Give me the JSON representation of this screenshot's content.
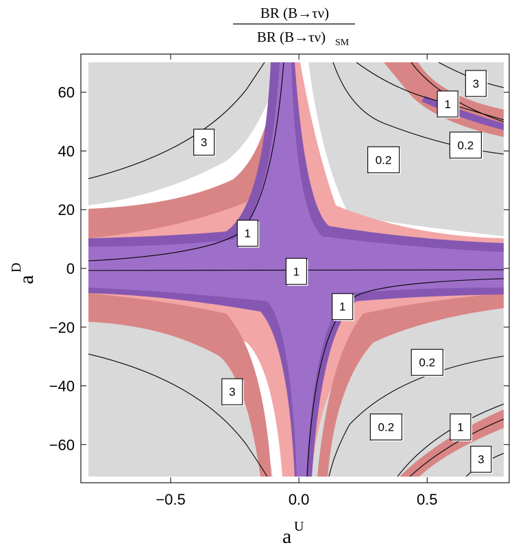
{
  "chart_data": {
    "type": "contour",
    "title": {
      "numerator": "BR (B→τν)",
      "denominator": "BR (B→τν)",
      "denominator_subscript": "SM"
    },
    "xlabel": "a",
    "xlabel_superscript": "U",
    "ylabel": "a",
    "ylabel_superscript": "D",
    "xlim": [
      -0.85,
      0.82
    ],
    "ylim": [
      -73,
      73
    ],
    "xticks": [
      {
        "value": -0.5,
        "label": "−0.5"
      },
      {
        "value": 0.0,
        "label": "0.0"
      },
      {
        "value": 0.5,
        "label": "0.5"
      }
    ],
    "yticks": [
      {
        "value": 60,
        "label": "60"
      },
      {
        "value": 40,
        "label": "40"
      },
      {
        "value": 20,
        "label": "20"
      },
      {
        "value": 0,
        "label": "0"
      },
      {
        "value": -20,
        "label": "−20"
      },
      {
        "value": -40,
        "label": "−40"
      },
      {
        "value": -60,
        "label": "−60"
      }
    ],
    "regions": [
      {
        "name": "excluded",
        "color": "#d9d9d9"
      },
      {
        "name": "allowed-2sigma",
        "color": "#d98585"
      },
      {
        "name": "allowed-1sigma",
        "color": "#f2a6a6"
      },
      {
        "name": "dark-purple-band",
        "color": "#8557b3"
      },
      {
        "name": "light-purple-band",
        "color": "#9e6fc8"
      }
    ],
    "contour_levels": [
      0.2,
      1,
      3
    ],
    "contour_labels": [
      {
        "text": "3",
        "x": -0.37,
        "y": 43
      },
      {
        "text": "3",
        "x": 0.69,
        "y": 63
      },
      {
        "text": "1",
        "x": 0.58,
        "y": 56
      },
      {
        "text": "0.2",
        "x": 0.33,
        "y": 37
      },
      {
        "text": "0.2",
        "x": 0.65,
        "y": 42
      },
      {
        "text": "1",
        "x": -0.2,
        "y": 12
      },
      {
        "text": "1",
        "x": -0.01,
        "y": -1
      },
      {
        "text": "1",
        "x": 0.17,
        "y": -13
      },
      {
        "text": "0.2",
        "x": 0.5,
        "y": -32
      },
      {
        "text": "3",
        "x": -0.26,
        "y": -42
      },
      {
        "text": "0.2",
        "x": 0.34,
        "y": -54
      },
      {
        "text": "1",
        "x": 0.63,
        "y": -54
      },
      {
        "text": "3",
        "x": 0.71,
        "y": -65
      }
    ]
  }
}
